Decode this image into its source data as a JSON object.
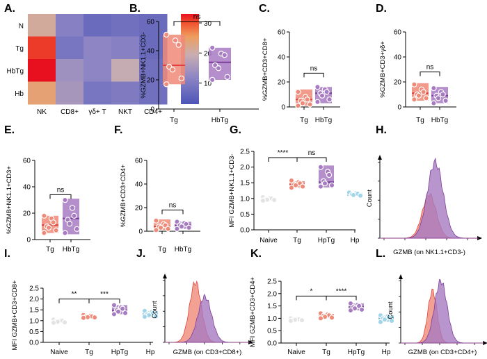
{
  "colors": {
    "tg": "#f08a78",
    "tg_stroke": "#e0413c",
    "hbtg": "#a77bc2",
    "hbtg_stroke": "#7a3f9a",
    "naive": "#e3e3e3",
    "naive_stroke": "#9a9a9a",
    "hp": "#9fd4ea",
    "hp_stroke": "#3fa7d0"
  },
  "panel_labels": [
    "A.",
    "B.",
    "C.",
    "D.",
    "E.",
    "F.",
    "G.",
    "H.",
    "I.",
    "J.",
    "K.",
    "L."
  ],
  "chart_data": [
    {
      "id": "A",
      "type": "heatmap",
      "rows": [
        "N",
        "Tg",
        "HbTg",
        "Hb"
      ],
      "cols": [
        "NK",
        "CD8+",
        "γδ+ T",
        "NKT",
        "CD4+"
      ],
      "values": [
        [
          21,
          11,
          7,
          8,
          7
        ],
        [
          31,
          9,
          12,
          11,
          7
        ],
        [
          33,
          14,
          12,
          19,
          8
        ],
        [
          24,
          15,
          9,
          10,
          8
        ]
      ],
      "colorbar": {
        "min": 3,
        "max": 33,
        "ticks": [
          10,
          20,
          30
        ]
      }
    },
    {
      "id": "B",
      "type": "box_dot",
      "ylabel": "%GZMB+NK1.1+CD3-",
      "ylim": [
        0,
        60
      ],
      "yticks": [
        0,
        20,
        40,
        60
      ],
      "groups": [
        {
          "name": "Tg",
          "style": "tg",
          "min": 17,
          "q1": 17,
          "median": 30,
          "q3": 51,
          "max": 51,
          "points": [
            51,
            47,
            44,
            29,
            27,
            21,
            17
          ]
        },
        {
          "name": "HbTg",
          "style": "hbtg",
          "min": 20,
          "q1": 20,
          "median": 32,
          "q3": 42,
          "max": 42,
          "points": [
            42,
            38,
            37,
            30,
            28,
            22,
            20
          ]
        }
      ],
      "brackets": [
        {
          "from": 0,
          "to": 1,
          "y": 60,
          "label": "ns"
        }
      ]
    },
    {
      "id": "C",
      "type": "box_dot",
      "ylabel": "%GZMB+CD3+CD8+",
      "ylim": [
        0,
        60
      ],
      "yticks": [
        0,
        20,
        40,
        60
      ],
      "groups": [
        {
          "name": "Tg",
          "style": "tg",
          "min": 1,
          "q1": 1,
          "median": 6,
          "q3": 14,
          "max": 14,
          "points": [
            12,
            8,
            6,
            5,
            3,
            2,
            1
          ]
        },
        {
          "name": "HbTg",
          "style": "hbtg",
          "min": 3,
          "q1": 3,
          "median": 11,
          "q3": 16,
          "max": 16,
          "points": [
            16,
            14,
            12,
            11,
            9,
            6,
            4
          ]
        }
      ],
      "brackets": [
        {
          "from": 0,
          "to": 1,
          "y": 27,
          "label": "ns"
        }
      ]
    },
    {
      "id": "D",
      "type": "box_dot",
      "ylabel": "%GZMB+CD3+γδ+",
      "ylim": [
        0,
        60
      ],
      "yticks": [
        0,
        20,
        40,
        60
      ],
      "groups": [
        {
          "name": "Tg",
          "style": "tg",
          "min": 5,
          "q1": 5,
          "median": 11,
          "q3": 19,
          "max": 19,
          "points": [
            18,
            14,
            12,
            10,
            9,
            7,
            6
          ]
        },
        {
          "name": "HbTg",
          "style": "hbtg",
          "min": 3,
          "q1": 3,
          "median": 9,
          "q3": 16,
          "max": 16,
          "points": [
            15,
            12,
            10,
            9,
            7,
            5,
            3
          ]
        }
      ],
      "brackets": [
        {
          "from": 0,
          "to": 1,
          "y": 28,
          "label": "ns"
        }
      ]
    },
    {
      "id": "E",
      "type": "box_dot",
      "ylabel": "%GZMB+NK1.1+CD3+",
      "ylim": [
        0,
        60
      ],
      "yticks": [
        0,
        20,
        40,
        60
      ],
      "groups": [
        {
          "name": "Tg",
          "style": "tg",
          "min": 5,
          "q1": 5,
          "median": 11,
          "q3": 18,
          "max": 18,
          "points": [
            18,
            16,
            13,
            10,
            9,
            7,
            5
          ]
        },
        {
          "name": "HbTg",
          "style": "hbtg",
          "min": 4,
          "q1": 4,
          "median": 16,
          "q3": 31,
          "max": 31,
          "points": [
            30,
            24,
            18,
            15,
            12,
            8,
            5
          ]
        }
      ],
      "brackets": [
        {
          "from": 0,
          "to": 1,
          "y": 34,
          "label": "ns"
        }
      ]
    },
    {
      "id": "F",
      "type": "box_dot",
      "ylabel": "%GZMB+CD3+CD4+",
      "ylim": [
        0,
        60
      ],
      "yticks": [
        0,
        20,
        40,
        60
      ],
      "groups": [
        {
          "name": "Tg",
          "style": "tg",
          "min": 1,
          "q1": 1,
          "median": 4,
          "q3": 10,
          "max": 10,
          "points": [
            9,
            6,
            5,
            4,
            3,
            2,
            1
          ]
        },
        {
          "name": "HbTg",
          "style": "hbtg",
          "min": 2,
          "q1": 2,
          "median": 5,
          "q3": 8,
          "max": 8,
          "points": [
            8,
            7,
            6,
            5,
            4,
            3,
            2
          ]
        }
      ],
      "brackets": [
        {
          "from": 0,
          "to": 1,
          "y": 18,
          "label": "ns"
        }
      ]
    },
    {
      "id": "G",
      "type": "box_dot",
      "ylabel": "MFI GZMB+NK1.1+CD3-",
      "ylim": [
        0,
        2.5
      ],
      "yticks": [
        0.0,
        0.5,
        1.0,
        1.5,
        2.0,
        2.5
      ],
      "groups": [
        {
          "name": "Naive",
          "style": "naive",
          "min": 0.93,
          "q1": 0.95,
          "median": 0.98,
          "q3": 1.02,
          "max": 1.04,
          "points": [
            1.04,
            1.02,
            1.0,
            0.98,
            0.96,
            0.95,
            0.93
          ]
        },
        {
          "name": "Tg",
          "style": "tg",
          "min": 1.33,
          "q1": 1.35,
          "median": 1.45,
          "q3": 1.55,
          "max": 1.57,
          "points": [
            1.57,
            1.52,
            1.48,
            1.45,
            1.42,
            1.38,
            1.34
          ]
        },
        {
          "name": "HpTg",
          "style": "hbtg",
          "min": 1.35,
          "q1": 1.35,
          "median": 1.52,
          "q3": 2.05,
          "max": 2.05,
          "points": [
            2.0,
            1.85,
            1.75,
            1.55,
            1.48,
            1.42,
            1.38
          ]
        },
        {
          "name": "Hp",
          "style": "hp",
          "min": 1.07,
          "q1": 1.08,
          "median": 1.13,
          "q3": 1.18,
          "max": 1.19,
          "points": [
            1.19,
            1.17,
            1.15,
            1.13,
            1.11,
            1.09
          ]
        }
      ],
      "brackets": [
        {
          "from": 0,
          "to": 1,
          "y": 2.3,
          "label": "****"
        },
        {
          "from": 1,
          "to": 2,
          "y": 2.3,
          "label": "ns"
        }
      ]
    },
    {
      "id": "H",
      "type": "histogram_overlay",
      "xlabel": "GZMB (on NK1.1+CD3-)",
      "ylabel": "Count",
      "series": [
        {
          "name": "Tg",
          "style": "tg",
          "center": 0.5,
          "width": 0.07,
          "height": 0.55
        },
        {
          "name": "HbTg",
          "style": "hbtg",
          "center": 0.56,
          "width": 0.08,
          "height": 0.95
        }
      ]
    },
    {
      "id": "I",
      "type": "box_dot",
      "ylabel": "MFI GZMB+CD3+CD8+",
      "ylim": [
        0,
        2.5
      ],
      "yticks": [
        0.0,
        0.5,
        1.0,
        1.5,
        2.0,
        2.5
      ],
      "groups": [
        {
          "name": "Naive",
          "style": "naive",
          "min": 0.9,
          "q1": 0.93,
          "median": 0.97,
          "q3": 1.02,
          "max": 1.05,
          "points": [
            1.05,
            1.02,
            1.0,
            0.97,
            0.95,
            0.92,
            0.9
          ]
        },
        {
          "name": "Tg",
          "style": "tg",
          "min": 1.13,
          "q1": 1.15,
          "median": 1.18,
          "q3": 1.24,
          "max": 1.26,
          "points": [
            1.26,
            1.23,
            1.2,
            1.18,
            1.16,
            1.15,
            1.13
          ]
        },
        {
          "name": "HpTg",
          "style": "hbtg",
          "min": 1.28,
          "q1": 1.3,
          "median": 1.48,
          "q3": 1.72,
          "max": 1.74,
          "points": [
            1.72,
            1.62,
            1.55,
            1.48,
            1.42,
            1.35,
            1.3
          ]
        },
        {
          "name": "Hp",
          "style": "hp",
          "min": 1.15,
          "q1": 1.18,
          "median": 1.3,
          "q3": 1.45,
          "max": 1.47,
          "points": [
            1.45,
            1.4,
            1.35,
            1.3,
            1.25,
            1.2,
            1.18
          ]
        }
      ],
      "brackets": [
        {
          "from": 0,
          "to": 1,
          "y": 2.0,
          "label": "**"
        },
        {
          "from": 1,
          "to": 2,
          "y": 2.0,
          "label": "***"
        }
      ]
    },
    {
      "id": "J",
      "type": "histogram_overlay",
      "xlabel": "GZMB (on CD3+CD8+)",
      "ylabel": "Count",
      "series": [
        {
          "name": "Tg",
          "style": "tg",
          "center": 0.36,
          "width": 0.07,
          "height": 0.92
        },
        {
          "name": "HbTg",
          "style": "hbtg",
          "center": 0.47,
          "width": 0.08,
          "height": 0.7
        }
      ]
    },
    {
      "id": "K",
      "type": "box_dot",
      "ylabel": "MFI GZMB+CD3+CD4+",
      "ylim": [
        0,
        2.5
      ],
      "yticks": [
        0.0,
        0.5,
        1.0,
        1.5,
        2.0,
        2.5
      ],
      "groups": [
        {
          "name": "Naive",
          "style": "naive",
          "min": 0.9,
          "q1": 0.92,
          "median": 0.95,
          "q3": 0.98,
          "max": 1.0,
          "points": [
            1.0,
            0.98,
            0.96,
            0.95,
            0.94,
            0.92,
            0.9
          ]
        },
        {
          "name": "Tg",
          "style": "tg",
          "min": 1.0,
          "q1": 1.02,
          "median": 1.1,
          "q3": 1.18,
          "max": 1.2,
          "points": [
            1.2,
            1.16,
            1.12,
            1.1,
            1.06,
            1.03,
            1.0
          ]
        },
        {
          "name": "HpTg",
          "style": "hbtg",
          "min": 1.3,
          "q1": 1.32,
          "median": 1.45,
          "q3": 1.6,
          "max": 1.62,
          "points": [
            1.6,
            1.55,
            1.5,
            1.45,
            1.4,
            1.35,
            1.32
          ]
        },
        {
          "name": "Hp",
          "style": "hp",
          "min": 0.82,
          "q1": 0.85,
          "median": 1.02,
          "q3": 1.12,
          "max": 1.14,
          "points": [
            1.12,
            1.08,
            1.04,
            1.0,
            0.95,
            0.9,
            0.85
          ]
        }
      ],
      "brackets": [
        {
          "from": 0,
          "to": 1,
          "y": 1.9,
          "label": "*"
        },
        {
          "from": 1,
          "to": 2,
          "y": 1.9,
          "label": "****"
        }
      ]
    },
    {
      "id": "L",
      "type": "histogram_overlay",
      "xlabel": "GZMB (on CD3+CD4+)",
      "ylabel": "Count",
      "series": [
        {
          "name": "Tg",
          "style": "tg",
          "center": 0.38,
          "width": 0.055,
          "height": 0.8
        },
        {
          "name": "HbTg",
          "style": "hbtg",
          "center": 0.48,
          "width": 0.075,
          "height": 0.95
        }
      ]
    }
  ]
}
